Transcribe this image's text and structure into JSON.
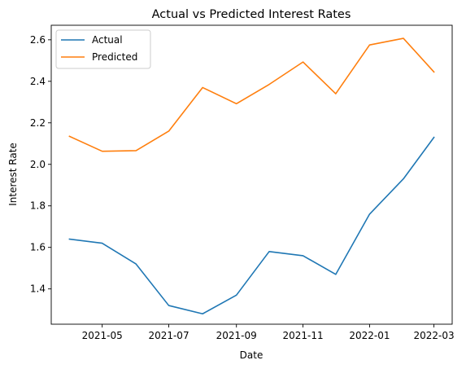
{
  "chart_data": {
    "type": "line",
    "title": "Actual vs Predicted Interest Rates",
    "xlabel": "Date",
    "ylabel": "Interest Rate",
    "x": [
      "2021-04-01",
      "2021-05-01",
      "2021-06-01",
      "2021-07-01",
      "2021-08-01",
      "2021-09-01",
      "2021-10-01",
      "2021-11-01",
      "2021-12-01",
      "2022-01-01",
      "2022-02-01",
      "2022-03-01"
    ],
    "xticks": [
      "2021-05",
      "2021-07",
      "2021-09",
      "2021-11",
      "2022-01",
      "2022-03"
    ],
    "yticks": [
      "1.4",
      "1.6",
      "1.8",
      "2.0",
      "2.2",
      "2.4",
      "2.6"
    ],
    "ylim": [
      1.23,
      2.67
    ],
    "grid": false,
    "legend_position": "upper-left",
    "series": [
      {
        "name": "Actual",
        "color": "#1f77b4",
        "values": [
          1.64,
          1.62,
          1.52,
          1.32,
          1.28,
          1.37,
          1.58,
          1.56,
          1.47,
          1.76,
          1.93,
          2.13
        ]
      },
      {
        "name": "Predicted",
        "color": "#ff7f0e",
        "values": [
          2.135,
          2.063,
          2.066,
          2.16,
          2.37,
          2.292,
          2.385,
          2.493,
          2.34,
          2.575,
          2.607,
          2.445
        ]
      }
    ]
  }
}
